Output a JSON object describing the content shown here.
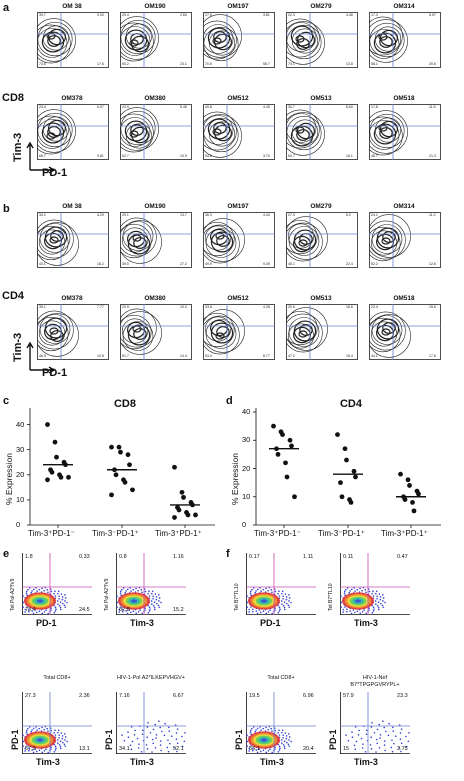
{
  "panel_labels": {
    "a": "a",
    "b": "b",
    "c": "c",
    "d": "d",
    "e": "e",
    "f": "f"
  },
  "flow": {
    "a": {
      "row_label": "CD8",
      "y_axis": "Tim-3",
      "x_axis": "PD-1",
      "samples": [
        {
          "name": "OM 38",
          "q": [
            "39.7",
            "0.00",
            "73.6",
            "17.6"
          ]
        },
        {
          "name": "OM190",
          "q": [
            "20.4",
            "2.84",
            "50.2",
            "23.1"
          ]
        },
        {
          "name": "OM197",
          "q": [
            "27.5",
            "3.81",
            "70.5",
            "58.7"
          ]
        },
        {
          "name": "OM279",
          "q": [
            "22.3",
            "4.46",
            "70.1",
            "13.8"
          ]
        },
        {
          "name": "OM314",
          "q": [
            "17.3",
            "5.97",
            "58.1",
            "20.6"
          ]
        },
        {
          "name": "OM378",
          "q": [
            "23.4",
            "6.07",
            "65.7",
            "9.81"
          ]
        },
        {
          "name": "OM380",
          "q": [
            "23.9",
            "5.45",
            "62.7",
            "10.9"
          ]
        },
        {
          "name": "OM512",
          "q": [
            "40.8",
            "4.40",
            "54.8",
            "3.70"
          ]
        },
        {
          "name": "OM513",
          "q": [
            "30.7",
            "8.60",
            "60.7",
            "16.1"
          ]
        },
        {
          "name": "OM518",
          "q": [
            "17.8",
            "11.5",
            "48.7",
            "21.3"
          ]
        }
      ]
    },
    "b": {
      "row_label": "CD4",
      "y_axis": "Tim-3",
      "x_axis": "PD-1",
      "samples": [
        {
          "name": "OM 38",
          "q": [
            "34.1",
            "4.29",
            "43.1",
            "18.2"
          ]
        },
        {
          "name": "OM190",
          "q": [
            "20.1",
            "13.7",
            "39.0",
            "27.2"
          ]
        },
        {
          "name": "OM197",
          "q": [
            "36.3",
            "4.44",
            "49.9",
            "9.39"
          ]
        },
        {
          "name": "OM279",
          "q": [
            "27.3",
            "5.2",
            "45.1",
            "22.4"
          ]
        },
        {
          "name": "OM314",
          "q": [
            "24.1",
            "11.2",
            "52.2",
            "12.6"
          ]
        },
        {
          "name": "OM378",
          "q": [
            "35.1",
            "7.77",
            "46.3",
            "10.8"
          ]
        },
        {
          "name": "OM380",
          "q": [
            "23.9",
            "10.0",
            "51.7",
            "14.4"
          ]
        },
        {
          "name": "OM512",
          "q": [
            "33.6",
            "4.26",
            "53.4",
            "8.77"
          ]
        },
        {
          "name": "OM513",
          "q": [
            "20.6",
            "16.8",
            "47.2",
            "15.4"
          ]
        },
        {
          "name": "OM518",
          "q": [
            "22.4",
            "15.6",
            "44.1",
            "17.8"
          ]
        }
      ]
    }
  },
  "chart_data": [
    {
      "type": "scatter",
      "title": "CD8",
      "ylabel": "% Expression",
      "ylim": [
        0,
        45
      ],
      "yticks": [
        "0",
        "10",
        "20",
        "30",
        "40"
      ],
      "categories": [
        "Tim-3⁺PD-1⁻",
        "Tim-3⁻PD-1⁺",
        "Tim-3⁺PD-1⁺"
      ],
      "groups": [
        {
          "values": [
            40,
            33,
            27,
            25,
            24,
            22,
            21,
            20,
            19,
            19,
            18
          ],
          "median": 24
        },
        {
          "values": [
            31,
            31,
            29,
            28,
            24,
            22,
            20,
            18,
            17,
            14,
            12
          ],
          "median": 22
        },
        {
          "values": [
            23,
            13,
            11,
            9,
            8,
            7,
            6,
            5,
            4,
            4,
            3
          ],
          "median": 8
        }
      ]
    },
    {
      "type": "scatter",
      "title": "CD4",
      "ylabel": "% Expression",
      "ylim": [
        0,
        40
      ],
      "yticks": [
        "0",
        "10",
        "20",
        "30",
        "40"
      ],
      "categories": [
        "Tim-3⁺PD-1⁻",
        "Tim-3⁻PD-1⁺",
        "Tim-3⁺PD-1⁺"
      ],
      "groups": [
        {
          "values": [
            35,
            33,
            32,
            30,
            28,
            27,
            25,
            22,
            17,
            10
          ],
          "median": 27
        },
        {
          "values": [
            32,
            27,
            23,
            19,
            17,
            15,
            10,
            9,
            8
          ],
          "median": 18
        },
        {
          "values": [
            18,
            16,
            14,
            12,
            11,
            10,
            9,
            8,
            5
          ],
          "median": 10
        }
      ]
    }
  ],
  "e": {
    "plots": [
      {
        "ylabel": "Tet Pol-A2*IV9",
        "xlabel": "PD-1",
        "ul": "1.8",
        "ur": "0.33",
        "ll": "73.4",
        "lr": "24.5",
        "title": ""
      },
      {
        "ylabel": "Tet Pol-A2*IV9",
        "xlabel": "Tim-3",
        "ul": "0.8",
        "ur": "1.16",
        "ll": "82.8",
        "lr": "15.2",
        "title": ""
      },
      {
        "ylabel": "PD-1",
        "xlabel": "Tim-3",
        "ul": "27.3",
        "ur": "2.36",
        "ll": "57.2",
        "lr": "13.1",
        "title": "Total CD8+"
      },
      {
        "ylabel": "PD-1",
        "xlabel": "Tim-3",
        "ul": "7.16",
        "ur": "6.67",
        "ll": "34.1",
        "lr": "52.1",
        "title": "HIV-1-Pol A2*ILKEPVHGV+"
      }
    ]
  },
  "f": {
    "plots": [
      {
        "ylabel": "Tet B7*TL10",
        "xlabel": "PD-1",
        "ul": "0.17",
        "ur": "1.11",
        "ll": "",
        "lr": "",
        "title": ""
      },
      {
        "ylabel": "Tet B7*TL10",
        "xlabel": "Tim-3",
        "ul": "0.11",
        "ur": "0.47",
        "ll": "",
        "lr": "",
        "title": ""
      },
      {
        "ylabel": "PD-1",
        "xlabel": "Tim-3",
        "ul": "19.5",
        "ur": "6.96",
        "ll": "53.1",
        "lr": "20.4",
        "title": "Total CD8+"
      },
      {
        "ylabel": "PD-1",
        "xlabel": "Tim-3",
        "ul": "57.9",
        "ur": "23.3",
        "ll": "15",
        "lr": "3.75",
        "title": "HIV-1-Nef B7*TPGPGVRYPL+"
      }
    ]
  },
  "colors": {
    "gate": "#6b7fd0",
    "gate_magenta": "#c84fb0",
    "ink": "#111111"
  }
}
